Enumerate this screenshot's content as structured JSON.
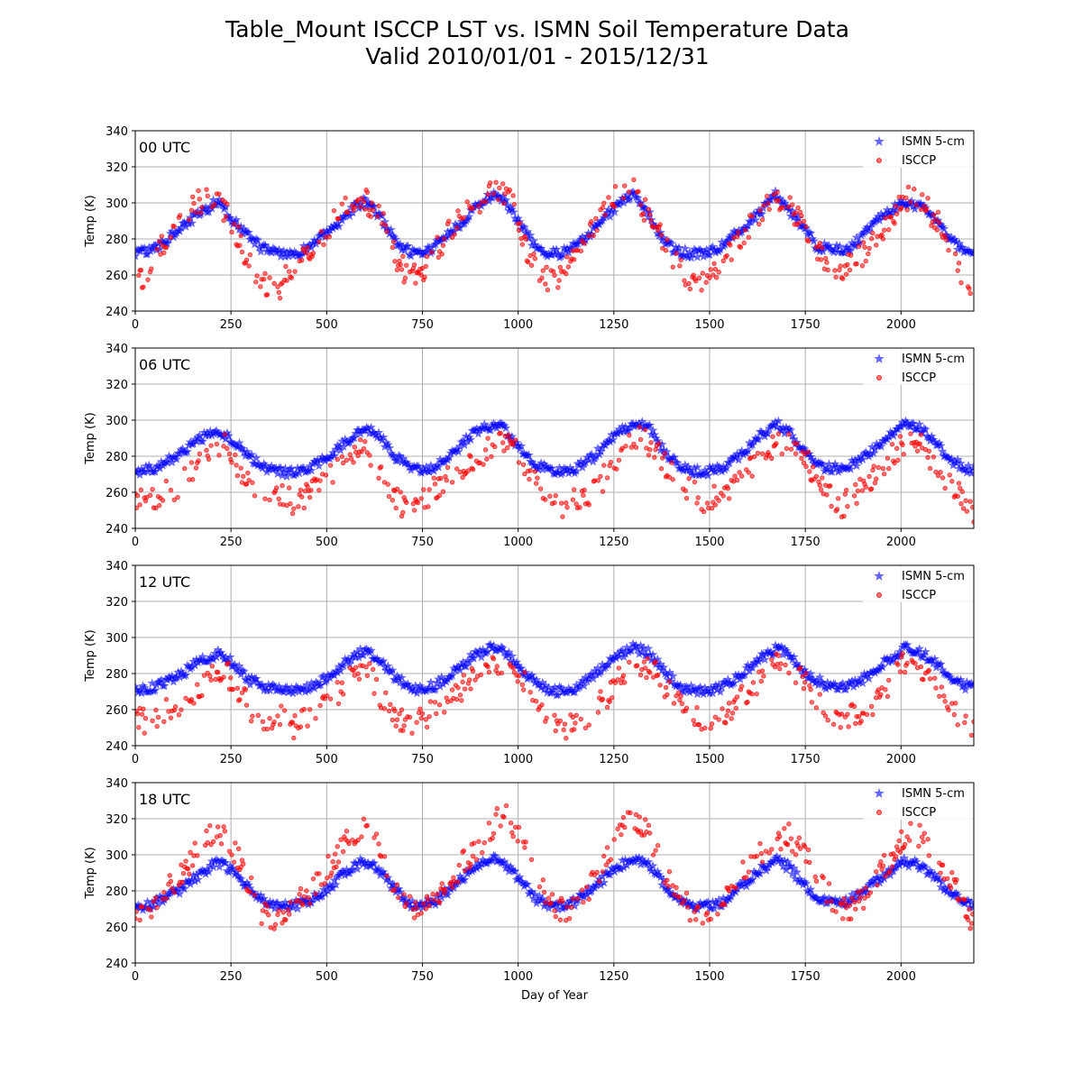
{
  "figure": {
    "title_line1": "Table_Mount ISCCP LST vs. ISMN Soil Temperature Data",
    "title_line2": "Valid 2010/01/01 - 2015/12/31"
  },
  "colors": {
    "ismn": "#0000ff",
    "isccp": "#ff0000",
    "grid": "#b0b0b0"
  },
  "chart_data": [
    {
      "type": "scatter",
      "panel_label": "00 UTC",
      "xlabel": "",
      "ylabel": "Temp (K)",
      "xlim": [
        0,
        2190
      ],
      "ylim": [
        240,
        340
      ],
      "xticks": [
        0,
        250,
        500,
        750,
        1000,
        1250,
        1500,
        1750,
        2000
      ],
      "yticks": [
        240,
        260,
        280,
        300,
        320,
        340
      ],
      "grid": true,
      "legend_position": "top-right",
      "series": [
        {
          "name": "ISMN 5-cm",
          "marker": "star",
          "x": [
            0,
            60,
            120,
            180,
            215,
            250,
            290,
            330,
            370,
            420,
            470,
            520,
            570,
            600,
            640,
            690,
            730,
            770,
            820,
            870,
            920,
            950,
            990,
            1030,
            1070,
            1110,
            1160,
            1210,
            1260,
            1300,
            1330,
            1370,
            1410,
            1450,
            1490,
            1530,
            1580,
            1630,
            1670,
            1700,
            1740,
            1780,
            1820,
            1860,
            1900,
            1950,
            2000,
            2040,
            2080,
            2120,
            2160,
            2190
          ],
          "y": [
            272,
            275,
            287,
            295,
            301,
            292,
            283,
            275,
            272,
            272,
            278,
            286,
            297,
            301,
            292,
            276,
            272,
            273,
            283,
            293,
            303,
            305,
            294,
            280,
            272,
            272,
            278,
            288,
            299,
            305,
            298,
            283,
            273,
            272,
            272,
            276,
            285,
            294,
            306,
            298,
            288,
            276,
            274,
            274,
            282,
            292,
            299,
            299,
            293,
            282,
            274,
            273
          ]
        },
        {
          "name": "ISCCP",
          "marker": "circle",
          "x": [
            5,
            20,
            40,
            70,
            110,
            160,
            200,
            220,
            250,
            280,
            310,
            340,
            370,
            400,
            440,
            480,
            530,
            580,
            610,
            640,
            680,
            710,
            740,
            780,
            830,
            880,
            920,
            950,
            990,
            1030,
            1060,
            1090,
            1130,
            1180,
            1230,
            1270,
            1300,
            1330,
            1370,
            1420,
            1460,
            1500,
            1560,
            1620,
            1670,
            1700,
            1750,
            1790,
            1830,
            1870,
            1920,
            1970,
            2010,
            2050,
            2090,
            2130,
            2170,
            2190
          ],
          "y": [
            258,
            255,
            265,
            275,
            288,
            300,
            305,
            300,
            290,
            275,
            262,
            255,
            250,
            263,
            272,
            280,
            294,
            304,
            300,
            292,
            270,
            260,
            258,
            272,
            286,
            297,
            305,
            308,
            297,
            270,
            260,
            255,
            268,
            280,
            295,
            308,
            310,
            296,
            282,
            265,
            256,
            258,
            274,
            292,
            305,
            300,
            287,
            270,
            264,
            266,
            276,
            288,
            303,
            300,
            292,
            272,
            258,
            245
          ]
        }
      ]
    },
    {
      "type": "scatter",
      "panel_label": "06 UTC",
      "xlabel": "",
      "ylabel": "Temp (K)",
      "xlim": [
        0,
        2190
      ],
      "ylim": [
        240,
        340
      ],
      "xticks": [
        0,
        250,
        500,
        750,
        1000,
        1250,
        1500,
        1750,
        2000
      ],
      "yticks": [
        240,
        260,
        280,
        300,
        320,
        340
      ],
      "grid": true,
      "legend_position": "top-right",
      "series": [
        {
          "name": "ISMN 5-cm",
          "marker": "star",
          "x": [
            0,
            60,
            120,
            180,
            215,
            260,
            300,
            350,
            400,
            450,
            500,
            550,
            590,
            630,
            680,
            730,
            780,
            830,
            880,
            930,
            960,
            1000,
            1050,
            1100,
            1150,
            1200,
            1250,
            1300,
            1340,
            1380,
            1430,
            1480,
            1530,
            1580,
            1630,
            1675,
            1710,
            1750,
            1800,
            1850,
            1900,
            1950,
            2010,
            2050,
            2090,
            2130,
            2170,
            2190
          ],
          "y": [
            271,
            274,
            282,
            291,
            294,
            288,
            279,
            273,
            271,
            273,
            279,
            288,
            295,
            293,
            280,
            272,
            274,
            282,
            292,
            297,
            296,
            286,
            275,
            271,
            273,
            280,
            291,
            298,
            296,
            283,
            273,
            271,
            273,
            281,
            291,
            298,
            293,
            281,
            274,
            273,
            279,
            288,
            298,
            296,
            288,
            278,
            273,
            273
          ]
        },
        {
          "name": "ISCCP",
          "marker": "circle",
          "x": [
            5,
            30,
            60,
            100,
            140,
            180,
            210,
            240,
            270,
            300,
            340,
            380,
            420,
            460,
            500,
            540,
            580,
            610,
            640,
            680,
            720,
            760,
            800,
            840,
            880,
            920,
            960,
            1000,
            1040,
            1080,
            1120,
            1160,
            1200,
            1240,
            1280,
            1320,
            1360,
            1400,
            1440,
            1480,
            1520,
            1560,
            1600,
            1640,
            1680,
            1720,
            1760,
            1800,
            1840,
            1880,
            1920,
            1960,
            2000,
            2040,
            2080,
            2120,
            2160,
            2190
          ],
          "y": [
            258,
            254,
            257,
            262,
            268,
            280,
            286,
            285,
            272,
            262,
            255,
            258,
            254,
            262,
            268,
            278,
            284,
            282,
            270,
            256,
            250,
            258,
            265,
            272,
            278,
            284,
            288,
            284,
            268,
            258,
            252,
            256,
            262,
            272,
            285,
            290,
            284,
            270,
            262,
            256,
            257,
            262,
            272,
            280,
            288,
            285,
            275,
            262,
            252,
            258,
            266,
            276,
            286,
            288,
            278,
            266,
            258,
            248
          ]
        }
      ]
    },
    {
      "type": "scatter",
      "panel_label": "12 UTC",
      "xlabel": "",
      "ylabel": "Temp (K)",
      "xlim": [
        0,
        2190
      ],
      "ylim": [
        240,
        340
      ],
      "xticks": [
        0,
        250,
        500,
        750,
        1000,
        1250,
        1500,
        1750,
        2000
      ],
      "yticks": [
        240,
        260,
        280,
        300,
        320,
        340
      ],
      "grid": true,
      "legend_position": "top-right",
      "series": [
        {
          "name": "ISMN 5-cm",
          "marker": "star",
          "x": [
            0,
            60,
            120,
            180,
            220,
            260,
            300,
            350,
            400,
            450,
            500,
            550,
            590,
            630,
            680,
            730,
            780,
            830,
            880,
            930,
            960,
            1000,
            1050,
            1100,
            1150,
            1200,
            1250,
            1300,
            1340,
            1380,
            1430,
            1480,
            1530,
            1580,
            1630,
            1675,
            1710,
            1750,
            1800,
            1850,
            1900,
            1950,
            2010,
            2050,
            2090,
            2130,
            2170,
            2190
          ],
          "y": [
            271,
            273,
            280,
            288,
            291,
            285,
            276,
            272,
            270,
            272,
            278,
            286,
            292,
            290,
            278,
            271,
            273,
            280,
            289,
            294,
            293,
            284,
            274,
            270,
            272,
            279,
            289,
            294,
            292,
            281,
            272,
            270,
            272,
            279,
            288,
            294,
            290,
            280,
            274,
            272,
            277,
            285,
            294,
            292,
            286,
            277,
            273,
            273
          ]
        },
        {
          "name": "ISCCP",
          "marker": "circle",
          "x": [
            5,
            30,
            60,
            100,
            140,
            180,
            210,
            240,
            270,
            300,
            340,
            380,
            420,
            460,
            500,
            540,
            580,
            610,
            640,
            680,
            720,
            760,
            800,
            840,
            880,
            920,
            960,
            1000,
            1040,
            1080,
            1120,
            1160,
            1200,
            1240,
            1280,
            1320,
            1360,
            1400,
            1440,
            1480,
            1520,
            1560,
            1600,
            1640,
            1680,
            1720,
            1760,
            1800,
            1840,
            1880,
            1920,
            1960,
            2000,
            2040,
            2080,
            2120,
            2160,
            2190
          ],
          "y": [
            256,
            252,
            258,
            260,
            266,
            276,
            282,
            280,
            270,
            260,
            252,
            256,
            250,
            258,
            264,
            272,
            280,
            280,
            268,
            256,
            250,
            256,
            262,
            270,
            276,
            282,
            286,
            282,
            266,
            256,
            250,
            254,
            260,
            270,
            282,
            286,
            282,
            268,
            260,
            254,
            254,
            260,
            270,
            278,
            286,
            282,
            272,
            260,
            252,
            258,
            262,
            272,
            284,
            286,
            276,
            264,
            256,
            250
          ]
        }
      ]
    },
    {
      "type": "scatter",
      "panel_label": "18 UTC",
      "xlabel": "Day of Year",
      "ylabel": "Temp (K)",
      "xlim": [
        0,
        2190
      ],
      "ylim": [
        240,
        340
      ],
      "xticks": [
        0,
        250,
        500,
        750,
        1000,
        1250,
        1500,
        1750,
        2000
      ],
      "yticks": [
        240,
        260,
        280,
        300,
        320,
        340
      ],
      "grid": true,
      "legend_position": "top-right",
      "series": [
        {
          "name": "ISMN 5-cm",
          "marker": "star",
          "x": [
            0,
            60,
            120,
            180,
            215,
            260,
            300,
            350,
            400,
            450,
            500,
            550,
            590,
            630,
            680,
            730,
            780,
            830,
            880,
            930,
            960,
            1000,
            1050,
            1100,
            1150,
            1200,
            1250,
            1300,
            1340,
            1380,
            1430,
            1480,
            1530,
            1580,
            1630,
            1675,
            1710,
            1750,
            1800,
            1850,
            1900,
            1950,
            2010,
            2050,
            2090,
            2130,
            2170,
            2190
          ],
          "y": [
            270,
            274,
            281,
            291,
            296,
            290,
            280,
            273,
            271,
            274,
            281,
            290,
            296,
            293,
            280,
            271,
            274,
            282,
            292,
            298,
            297,
            287,
            275,
            271,
            274,
            282,
            292,
            298,
            296,
            284,
            273,
            271,
            273,
            282,
            291,
            297,
            293,
            282,
            274,
            273,
            279,
            288,
            296,
            294,
            287,
            278,
            273,
            273
          ]
        },
        {
          "name": "ISCCP",
          "marker": "circle",
          "x": [
            5,
            30,
            60,
            100,
            140,
            180,
            210,
            240,
            270,
            300,
            330,
            360,
            400,
            440,
            480,
            520,
            560,
            600,
            630,
            660,
            700,
            740,
            780,
            820,
            860,
            900,
            940,
            970,
            1000,
            1040,
            1080,
            1120,
            1160,
            1200,
            1240,
            1280,
            1310,
            1340,
            1380,
            1420,
            1460,
            1500,
            1540,
            1580,
            1620,
            1660,
            1700,
            1740,
            1780,
            1820,
            1860,
            1900,
            1940,
            1980,
            2020,
            2060,
            2100,
            2140,
            2170,
            2190
          ],
          "y": [
            266,
            270,
            275,
            284,
            296,
            308,
            312,
            308,
            298,
            282,
            268,
            262,
            268,
            276,
            284,
            298,
            310,
            314,
            306,
            290,
            276,
            270,
            272,
            284,
            296,
            306,
            318,
            322,
            312,
            292,
            276,
            268,
            272,
            286,
            300,
            316,
            320,
            312,
            292,
            276,
            268,
            262,
            274,
            288,
            300,
            306,
            312,
            304,
            290,
            274,
            270,
            276,
            288,
            300,
            314,
            310,
            298,
            282,
            266,
            260
          ]
        }
      ]
    }
  ]
}
